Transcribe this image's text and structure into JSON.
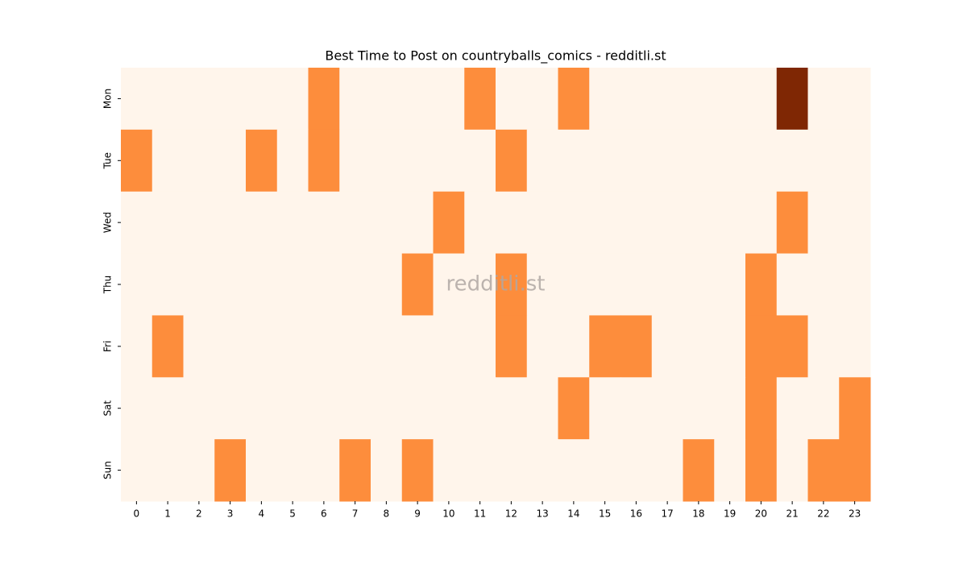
{
  "chart_data": {
    "type": "heatmap",
    "title": "Best Time to Post on countryballs_comics - redditli.st",
    "watermark": "redditli.st",
    "x": [
      0,
      1,
      2,
      3,
      4,
      5,
      6,
      7,
      8,
      9,
      10,
      11,
      12,
      13,
      14,
      15,
      16,
      17,
      18,
      19,
      20,
      21,
      22,
      23
    ],
    "y": [
      "Mon",
      "Tue",
      "Wed",
      "Thu",
      "Fri",
      "Sat",
      "Sun"
    ],
    "values": [
      [
        0,
        0,
        0,
        0,
        0,
        0,
        1,
        0,
        0,
        0,
        0,
        1,
        0,
        0,
        1,
        0,
        0,
        0,
        0,
        0,
        0,
        2,
        0,
        0
      ],
      [
        1,
        0,
        0,
        0,
        1,
        0,
        1,
        0,
        0,
        0,
        0,
        0,
        1,
        0,
        0,
        0,
        0,
        0,
        0,
        0,
        0,
        0,
        0,
        0
      ],
      [
        0,
        0,
        0,
        0,
        0,
        0,
        0,
        0,
        0,
        0,
        1,
        0,
        0,
        0,
        0,
        0,
        0,
        0,
        0,
        0,
        0,
        1,
        0,
        0
      ],
      [
        0,
        0,
        0,
        0,
        0,
        0,
        0,
        0,
        0,
        1,
        0,
        0,
        1,
        0,
        0,
        0,
        0,
        0,
        0,
        0,
        1,
        0,
        0,
        0
      ],
      [
        0,
        1,
        0,
        0,
        0,
        0,
        0,
        0,
        0,
        0,
        0,
        0,
        1,
        0,
        0,
        1,
        1,
        0,
        0,
        0,
        1,
        1,
        0,
        0
      ],
      [
        0,
        0,
        0,
        0,
        0,
        0,
        0,
        0,
        0,
        0,
        0,
        0,
        0,
        0,
        1,
        0,
        0,
        0,
        0,
        0,
        1,
        0,
        0,
        1
      ],
      [
        0,
        0,
        0,
        1,
        0,
        0,
        0,
        1,
        0,
        1,
        0,
        0,
        0,
        0,
        0,
        0,
        0,
        0,
        1,
        0,
        1,
        0,
        1,
        1
      ]
    ],
    "vlim": [
      0,
      2
    ],
    "color_stops": [
      "#fff5eb",
      "#fd8d3c",
      "#7f2704"
    ]
  }
}
